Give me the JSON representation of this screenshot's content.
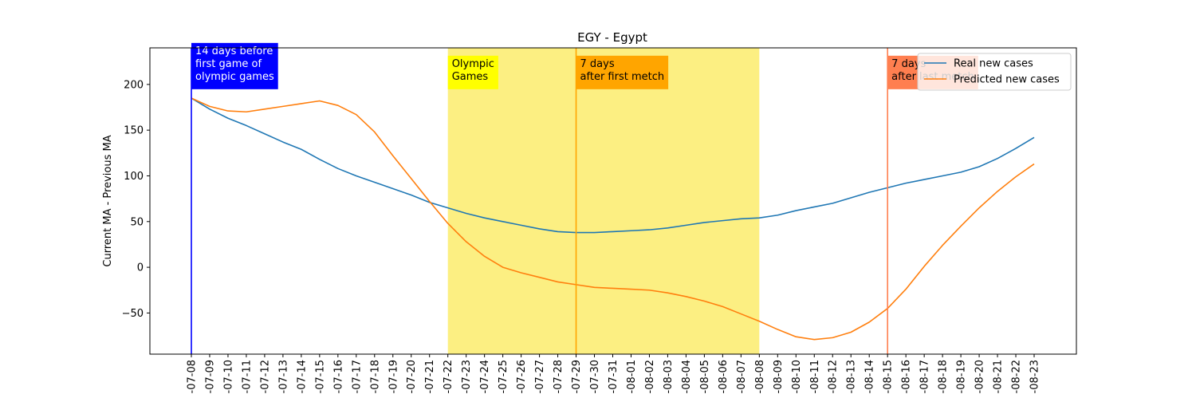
{
  "chart_data": {
    "type": "line",
    "title": "EGY - Egypt",
    "xlabel": "",
    "ylabel": "Current MA - Previous MA",
    "ylim": [
      -95,
      240
    ],
    "yticks": [
      -50,
      0,
      50,
      100,
      150,
      200
    ],
    "grid": false,
    "legend_position": "top-right",
    "x": [
      "2021-07-08",
      "2021-07-09",
      "2021-07-10",
      "2021-07-11",
      "2021-07-12",
      "2021-07-13",
      "2021-07-14",
      "2021-07-15",
      "2021-07-16",
      "2021-07-17",
      "2021-07-18",
      "2021-07-19",
      "2021-07-20",
      "2021-07-21",
      "2021-07-22",
      "2021-07-23",
      "2021-07-24",
      "2021-07-25",
      "2021-07-26",
      "2021-07-27",
      "2021-07-28",
      "2021-07-29",
      "2021-07-30",
      "2021-07-31",
      "2021-08-01",
      "2021-08-02",
      "2021-08-03",
      "2021-08-04",
      "2021-08-05",
      "2021-08-06",
      "2021-08-07",
      "2021-08-08",
      "2021-08-09",
      "2021-08-10",
      "2021-08-11",
      "2021-08-12",
      "2021-08-13",
      "2021-08-14",
      "2021-08-15",
      "2021-08-16",
      "2021-08-17",
      "2021-08-18",
      "2021-08-19",
      "2021-08-20",
      "2021-08-21",
      "2021-08-22",
      "2021-08-23"
    ],
    "x_tick_labels": [
      "-07-08",
      "-07-09",
      "-07-10",
      "-07-11",
      "-07-12",
      "-07-13",
      "-07-14",
      "-07-15",
      "-07-16",
      "-07-17",
      "-07-18",
      "-07-19",
      "-07-20",
      "-07-21",
      "-07-22",
      "-07-23",
      "-07-24",
      "-07-25",
      "-07-26",
      "-07-27",
      "-07-28",
      "-07-29",
      "-07-30",
      "-07-31",
      "-08-01",
      "-08-02",
      "-08-03",
      "-08-04",
      "-08-05",
      "-08-06",
      "-08-07",
      "-08-08",
      "-08-09",
      "-08-10",
      "-08-11",
      "-08-12",
      "-08-13",
      "-08-14",
      "-08-15",
      "-08-16",
      "-08-17",
      "-08-18",
      "-08-19",
      "-08-20",
      "-08-21",
      "-08-22",
      "-08-23"
    ],
    "series": [
      {
        "name": "Real new cases",
        "color": "#1f77b4",
        "values": [
          185,
          173,
          163,
          155,
          146,
          137,
          129,
          118,
          108,
          100,
          93,
          86,
          79,
          71,
          65,
          59,
          54,
          50,
          46,
          42,
          39,
          38,
          38,
          39,
          40,
          41,
          43,
          46,
          49,
          51,
          53,
          54,
          57,
          62,
          66,
          70,
          76,
          82,
          87,
          92,
          96,
          100,
          104,
          110,
          119,
          130,
          142
        ]
      },
      {
        "name": "Predicted new cases",
        "color": "#ff7f0e",
        "values": [
          185,
          176,
          171,
          170,
          173,
          176,
          179,
          182,
          177,
          167,
          148,
          122,
          97,
          72,
          48,
          28,
          12,
          0,
          -6,
          -11,
          -16,
          -19,
          -22,
          -23,
          -24,
          -25,
          -28,
          -32,
          -37,
          -43,
          -51,
          -59,
          -68,
          -76,
          -79,
          -77,
          -71,
          -60,
          -45,
          -24,
          1,
          24,
          45,
          65,
          83,
          99,
          113
        ]
      }
    ],
    "shaded_region": {
      "from": "2021-07-22",
      "to": "2021-08-08",
      "color": "#fcef82"
    },
    "vertical_lines": [
      {
        "at": "2021-07-08",
        "color": "#0000ff"
      },
      {
        "at": "2021-07-29",
        "color": "#ffa500"
      },
      {
        "at": "2021-08-15",
        "color": "#ff7f50"
      }
    ],
    "annotations": [
      {
        "at": "2021-07-08",
        "y": 200,
        "lines": [
          "14 days before",
          "first game of",
          "olympic games"
        ],
        "bg": "#0000ff",
        "fg": "#ffffff"
      },
      {
        "at": "2021-07-22",
        "y": 200,
        "lines": [
          "Olympic",
          "Games"
        ],
        "bg": "#ffff00",
        "fg": "#000000"
      },
      {
        "at": "2021-07-29",
        "y": 200,
        "lines": [
          "7 days",
          "after first metch"
        ],
        "bg": "#ffa500",
        "fg": "#000000"
      },
      {
        "at": "2021-08-15",
        "y": 200,
        "lines": [
          "7 days",
          "after last metch"
        ],
        "bg": "#ff7f50",
        "fg": "#000000"
      }
    ]
  }
}
